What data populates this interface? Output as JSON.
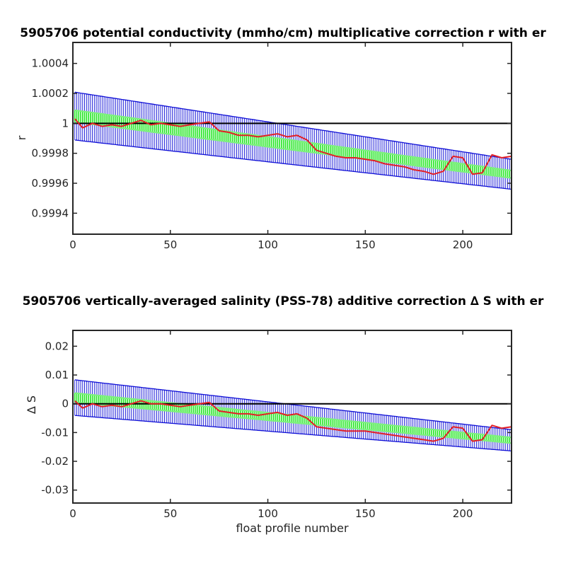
{
  "chart_data": [
    {
      "type": "line",
      "title": "5905706 potential conductivity (mmho/cm) multiplicative correction r with er",
      "xlabel": "",
      "ylabel": "r",
      "xlim": [
        0,
        225
      ],
      "ylim": [
        0.99926,
        1.00054
      ],
      "xticks": [
        0,
        50,
        100,
        150,
        200
      ],
      "xtick_labels": [
        "0",
        "50",
        "100",
        "150",
        "200"
      ],
      "yticks": [
        0.9994,
        0.9996,
        0.9998,
        1.0,
        1.0002,
        1.0004
      ],
      "ytick_labels": [
        "0.9994",
        "0.9996",
        "0.9998",
        "1",
        "1.0002",
        "1.0004"
      ],
      "grid": false,
      "reference_line": 1.0,
      "fit": {
        "start": 1.00005,
        "end": 0.99966
      },
      "error_band": {
        "start_halfwidth": 0.00016,
        "end_halfwidth": 0.0001
      },
      "green_band": {
        "start_halfwidth": 4e-05,
        "end_halfwidth": 2.5e-05
      },
      "series": [
        {
          "x": [
            1,
            5,
            10,
            15,
            20,
            25,
            30,
            35,
            40,
            45,
            50,
            55,
            60,
            65,
            70,
            75,
            80,
            85,
            90,
            95,
            100,
            105,
            110,
            115,
            120,
            125,
            130,
            135,
            140,
            145,
            150,
            155,
            160,
            165,
            170,
            175,
            180,
            185,
            190,
            195,
            200,
            205,
            210,
            215,
            220,
            225
          ],
          "y": [
            1.00003,
            0.99997,
            1.0,
            0.99998,
            0.99999,
            0.99998,
            1.0,
            1.00002,
            0.99999,
            1.0,
            0.99999,
            0.99998,
            0.99999,
            1.0,
            1.00001,
            0.99995,
            0.99994,
            0.99992,
            0.99992,
            0.99991,
            0.99992,
            0.99993,
            0.99991,
            0.99992,
            0.99989,
            0.99982,
            0.9998,
            0.99978,
            0.99977,
            0.99977,
            0.99976,
            0.99975,
            0.99973,
            0.99972,
            0.99971,
            0.99969,
            0.99968,
            0.99966,
            0.99968,
            0.99978,
            0.99977,
            0.99966,
            0.99967,
            0.99979,
            0.99977,
            0.99978
          ],
          "color": "#e21f26"
        }
      ]
    },
    {
      "type": "line",
      "title": "5905706 vertically-averaged salinity (PSS-78) additive correction ∆ S with er",
      "xlabel": "float profile number",
      "ylabel": "∆ S",
      "xlim": [
        0,
        225
      ],
      "ylim": [
        -0.0345,
        0.0255
      ],
      "xticks": [
        0,
        50,
        100,
        150,
        200
      ],
      "xtick_labels": [
        "0",
        "50",
        "100",
        "150",
        "200"
      ],
      "yticks": [
        -0.03,
        -0.02,
        -0.01,
        0,
        0.01,
        0.02
      ],
      "ytick_labels": [
        "-0.03",
        "-0.02",
        "-0.01",
        "0",
        "0.01",
        "0.02"
      ],
      "grid": false,
      "reference_line": 0,
      "fit": {
        "start": 0.0022,
        "end": -0.0127
      },
      "error_band": {
        "start_halfwidth": 0.0062,
        "end_halfwidth": 0.0037
      },
      "green_band": {
        "start_halfwidth": 0.0016,
        "end_halfwidth": 0.001
      },
      "series": [
        {
          "x": [
            1,
            5,
            10,
            15,
            20,
            25,
            30,
            35,
            40,
            45,
            50,
            55,
            60,
            65,
            70,
            75,
            80,
            85,
            90,
            95,
            100,
            105,
            110,
            115,
            120,
            125,
            130,
            135,
            140,
            145,
            150,
            155,
            160,
            165,
            170,
            175,
            180,
            185,
            190,
            195,
            200,
            205,
            210,
            215,
            220,
            225
          ],
          "y": [
            0.001,
            -0.0015,
            0.0,
            -0.001,
            -0.0005,
            -0.001,
            0.0,
            0.001,
            0.0,
            0.0,
            -0.0005,
            -0.001,
            -0.0005,
            0.0,
            0.0005,
            -0.0025,
            -0.003,
            -0.0035,
            -0.0035,
            -0.004,
            -0.0035,
            -0.003,
            -0.004,
            -0.0035,
            -0.005,
            -0.008,
            -0.0085,
            -0.009,
            -0.0095,
            -0.0095,
            -0.0095,
            -0.01,
            -0.0105,
            -0.011,
            -0.0115,
            -0.012,
            -0.0125,
            -0.013,
            -0.012,
            -0.008,
            -0.0085,
            -0.013,
            -0.0125,
            -0.0075,
            -0.0085,
            -0.008
          ],
          "color": "#e21f26"
        }
      ]
    }
  ],
  "colors": {
    "measured": "#e21f26",
    "fit_band": "#1fe61f",
    "error_bars": "#0f0fd6",
    "reference": "#000000",
    "axes": "#262626"
  }
}
